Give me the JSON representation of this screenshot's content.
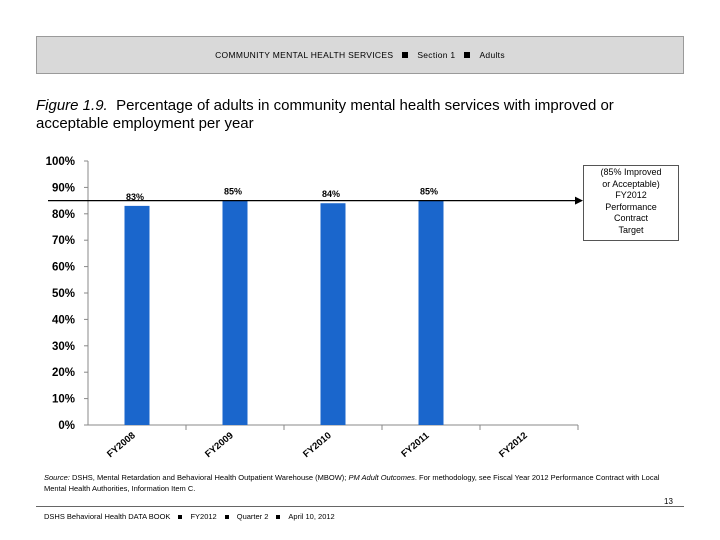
{
  "header": {
    "part1": "COMMUNITY MENTAL HEALTH SERVICES",
    "part2": "Section 1",
    "part3": "Adults"
  },
  "figure": {
    "label": "Figure 1.9.",
    "title": "Percentage of adults in community mental health services with improved or acceptable employment per year"
  },
  "target_box": {
    "lines": [
      "(85% Improved",
      "or Acceptable)",
      "FY2012",
      "Performance",
      "Contract",
      "Target"
    ]
  },
  "chart_data": {
    "type": "bar",
    "categories": [
      "FY2008",
      "FY2009",
      "FY2010",
      "FY2011",
      "FY2012"
    ],
    "values": [
      83,
      85,
      84,
      85,
      null
    ],
    "data_labels": [
      "83%",
      "85%",
      "84%",
      "85%",
      ""
    ],
    "ylim": [
      0,
      100
    ],
    "yticks": [
      "0%",
      "10%",
      "20%",
      "30%",
      "40%",
      "50%",
      "60%",
      "70%",
      "80%",
      "90%",
      "100%"
    ],
    "target_value": 85,
    "bar_color": "#1a66cc",
    "grid": false
  },
  "source": {
    "label": "Source:",
    "text1": " DSHS, Mental Retardation and Behavioral Health Outpatient Warehouse (MBOW);",
    "italic": " PM Adult Outcomes",
    "text2": ". For methodology, see Fiscal Year 2012 Performance Contract with Local Mental Health Authorities, Information Item C."
  },
  "page_number": "13",
  "footer": {
    "part1": "DSHS Behavioral Health DATA BOOK",
    "part2": "FY2012",
    "part3": "Quarter 2",
    "part4": "April 10, 2012"
  }
}
